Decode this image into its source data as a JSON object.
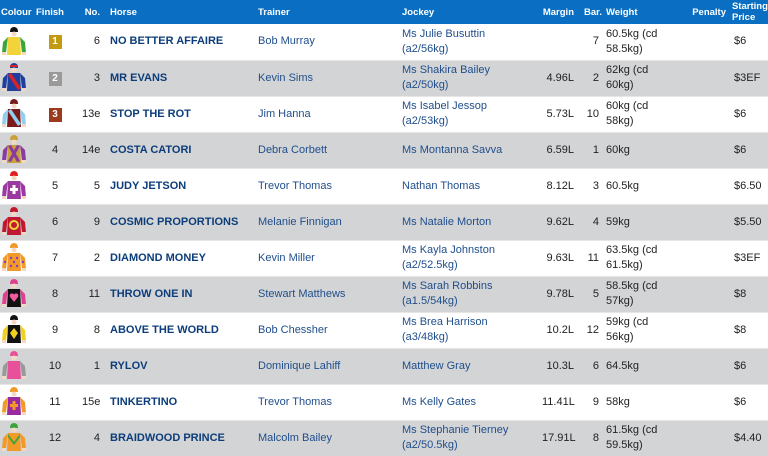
{
  "header": {
    "colour": "Colour",
    "finish": "Finish",
    "no": "No.",
    "horse": "Horse",
    "trainer": "Trainer",
    "jockey": "Jockey",
    "margin": "Margin",
    "bar": "Bar.",
    "weight": "Weight",
    "penalty": "Penalty",
    "starting_price_line1": "Starting",
    "starting_price_line2": "Price"
  },
  "colors": {
    "header_bg": "#0a6fc2",
    "alt_row_bg": "#d3d4d6",
    "horse_text": "#0c3d7a",
    "link_text": "#1f4e8c",
    "badge_gold": "#c49a10",
    "badge_silver": "#9a9a9a",
    "badge_bronze": "#9b3a1c"
  },
  "rows": [
    {
      "finish": "1",
      "badge": "gold",
      "no": "6",
      "horse": "NO BETTER AFFAIRE",
      "trainer": "Bob Murray",
      "jockey": "Ms Julie Busuttin (a2/56kg)",
      "margin": "",
      "bar": "7",
      "weight": "60.5kg (cd 58.5kg)",
      "penalty": "",
      "sp": "$6",
      "silk": "yellow-green-sleeves-black-cap"
    },
    {
      "finish": "2",
      "badge": "silver",
      "no": "3",
      "horse": "MR EVANS",
      "trainer": "Kevin Sims",
      "jockey": "Ms Shakira Bailey (a2/50kg)",
      "margin": "4.96L",
      "bar": "2",
      "weight": "62kg (cd 60kg)",
      "penalty": "",
      "sp": "$3EF",
      "silk": "royal-blue-red-sash"
    },
    {
      "finish": "3",
      "badge": "bronze",
      "no": "13e",
      "horse": "STOP THE ROT",
      "trainer": "Jim Hanna",
      "jockey": "Ms Isabel Jessop (a2/53kg)",
      "margin": "5.73L",
      "bar": "10",
      "weight": "60kg (cd 58kg)",
      "penalty": "",
      "sp": "$6",
      "silk": "maroon-light-blue-sash"
    },
    {
      "finish": "4",
      "badge": "",
      "no": "14e",
      "horse": "COSTA CATORI",
      "trainer": "Debra Corbett",
      "jockey": "Ms Montanna Savva",
      "margin": "6.59L",
      "bar": "1",
      "weight": "60kg",
      "penalty": "",
      "sp": "$6",
      "silk": "gold-purple-cross-sashes"
    },
    {
      "finish": "5",
      "badge": "",
      "no": "5",
      "horse": "JUDY JETSON",
      "trainer": "Trevor Thomas",
      "jockey": "Nathan Thomas",
      "margin": "8.12L",
      "bar": "3",
      "weight": "60.5kg",
      "penalty": "",
      "sp": "$6.50",
      "silk": "purple-white-maltese-cross"
    },
    {
      "finish": "6",
      "badge": "",
      "no": "9",
      "horse": "COSMIC PROPORTIONS",
      "trainer": "Melanie Finnigan",
      "jockey": "Ms Natalie Morton",
      "margin": "9.62L",
      "bar": "4",
      "weight": "59kg",
      "penalty": "",
      "sp": "$5.50",
      "silk": "crimson-yellow-ring"
    },
    {
      "finish": "7",
      "badge": "",
      "no": "2",
      "horse": "DIAMOND MONEY",
      "trainer": "Kevin Miller",
      "jockey": "Ms Kayla Johnston (a2/52.5kg)",
      "margin": "9.63L",
      "bar": "11",
      "weight": "63.5kg (cd 61.5kg)",
      "penalty": "",
      "sp": "$3EF",
      "silk": "orange-purple-stars"
    },
    {
      "finish": "8",
      "badge": "",
      "no": "11",
      "horse": "THROW ONE IN",
      "trainer": "Stewart Matthews",
      "jockey": "Ms Sarah Robbins (a1.5/54kg)",
      "margin": "9.78L",
      "bar": "5",
      "weight": "58.5kg (cd 57kg)",
      "penalty": "",
      "sp": "$8",
      "silk": "black-pink-heart"
    },
    {
      "finish": "9",
      "badge": "",
      "no": "8",
      "horse": "ABOVE THE WORLD",
      "trainer": "Bob Chessher",
      "jockey": "Ms Brea Harrison (a3/48kg)",
      "margin": "10.2L",
      "bar": "12",
      "weight": "59kg (cd 56kg)",
      "penalty": "",
      "sp": "$8",
      "silk": "black-yellow-diamond"
    },
    {
      "finish": "10",
      "badge": "",
      "no": "1",
      "horse": "RYLOV",
      "trainer": "Dominique Lahiff",
      "jockey": "Matthew Gray",
      "margin": "10.3L",
      "bar": "6",
      "weight": "64.5kg",
      "penalty": "",
      "sp": "$6",
      "silk": "pink-grey-sleeves"
    },
    {
      "finish": "11",
      "badge": "",
      "no": "15e",
      "horse": "TINKERTINO",
      "trainer": "Trevor Thomas",
      "jockey": "Ms Kelly Gates",
      "margin": "11.41L",
      "bar": "9",
      "weight": "58kg",
      "penalty": "",
      "sp": "$6",
      "silk": "purple-orange-cross"
    },
    {
      "finish": "12",
      "badge": "",
      "no": "4",
      "horse": "BRAIDWOOD PRINCE",
      "trainer": "Malcolm Bailey",
      "jockey": "Ms Stephanie Tierney (a2/50.5kg)",
      "margin": "17.91L",
      "bar": "8",
      "weight": "61.5kg (cd 59.5kg)",
      "penalty": "",
      "sp": "$4.40",
      "silk": "orange-green-chevron"
    }
  ]
}
